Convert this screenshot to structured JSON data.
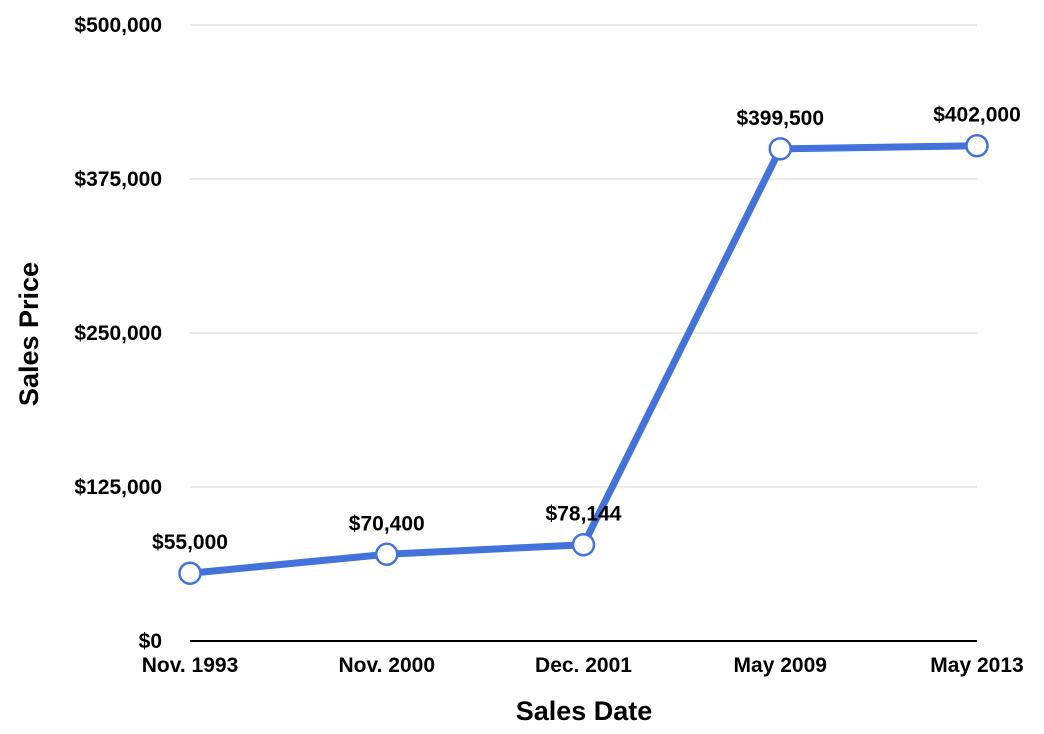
{
  "chart_data": {
    "type": "line",
    "title": "",
    "xlabel": "Sales Date",
    "ylabel": "Sales Price",
    "categories": [
      "Nov. 1993",
      "Nov. 2000",
      "Dec. 2001",
      "May 2009",
      "May 2013"
    ],
    "series": [
      {
        "values": [
          55000,
          70400,
          78144,
          399500,
          402000
        ],
        "data_labels": [
          "$55,000",
          "$70,400",
          "$78,144",
          "$399,500",
          "$402,000"
        ],
        "color": "#4472DB",
        "marker": "hollow-circle"
      }
    ],
    "ylim": [
      0,
      500000
    ],
    "yticks": [
      0,
      125000,
      250000,
      375000,
      500000
    ],
    "ytick_labels": [
      "$0",
      "$125,000",
      "$250,000",
      "$375,000",
      "$500,000"
    ],
    "grid": true,
    "legend": "none",
    "colors": {
      "line": "#4472DB",
      "marker_fill": "#ffffff",
      "grid": "#d9d9d9",
      "axis": "#000000"
    }
  }
}
